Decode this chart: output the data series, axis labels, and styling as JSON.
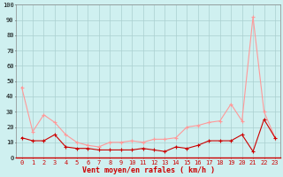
{
  "x": [
    0,
    1,
    2,
    3,
    4,
    5,
    6,
    7,
    8,
    9,
    10,
    11,
    12,
    13,
    14,
    15,
    16,
    17,
    18,
    19,
    20,
    21,
    22,
    23
  ],
  "vent_moyen": [
    13,
    11,
    11,
    15,
    7,
    6,
    6,
    5,
    5,
    5,
    5,
    6,
    5,
    4,
    7,
    6,
    8,
    11,
    11,
    11,
    15,
    4,
    25,
    13
  ],
  "rafales": [
    46,
    17,
    28,
    23,
    15,
    10,
    8,
    7,
    10,
    10,
    11,
    10,
    12,
    12,
    13,
    20,
    21,
    23,
    24,
    35,
    24,
    92,
    30,
    13
  ],
  "xlabel": "Vent moyen/en rafales ( km/h )",
  "ylim": [
    0,
    100
  ],
  "yticks": [
    0,
    10,
    20,
    30,
    40,
    50,
    60,
    70,
    80,
    90,
    100
  ],
  "bg_color": "#cff0f0",
  "grid_color": "#aacfcf",
  "line_color_moyen": "#cc0000",
  "line_color_rafales": "#ff9999",
  "xlabel_color": "#cc0000",
  "xtick_color": "#cc0000",
  "ytick_color": "#000000",
  "xlabel_fontsize": 6,
  "tick_fontsize": 5,
  "linewidth": 0.8,
  "markersize": 3
}
